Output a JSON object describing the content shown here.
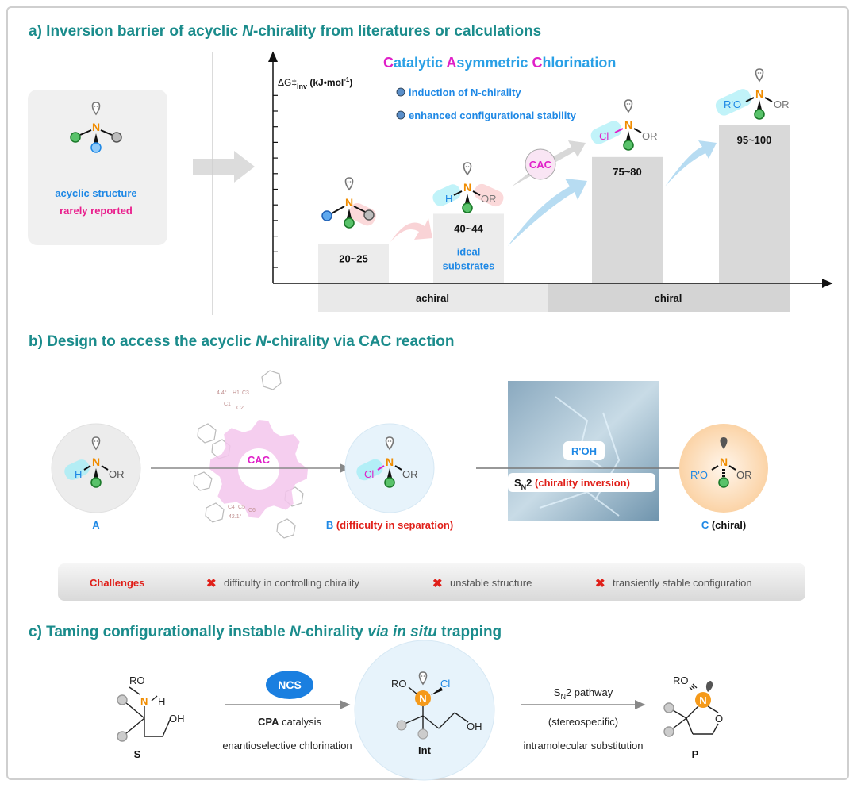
{
  "sections": {
    "a": {
      "prefix": "a) Inversion barrier of acyclic ",
      "italic": "N",
      "suffix": "-chirality from literatures or calculations"
    },
    "b": {
      "prefix": "b) Design to access the acyclic ",
      "italic": "N",
      "suffix": "-chirality via CAC reaction"
    },
    "c": {
      "prefix": "c) Taming configurationally instable ",
      "italic": "N",
      "mid": "-chirality ",
      "italic2": "via in situ",
      "suffix": " trapping"
    }
  },
  "left_card": {
    "line1": "acyclic structure",
    "line2": "rarely reported"
  },
  "chart": {
    "ylabel": "ΔG‡inv (kJ•mol-1)",
    "title": {
      "c1": "C",
      "t1": "atalytic ",
      "c2": "A",
      "t2": "symmetric ",
      "c3": "C",
      "t3": "hlorination"
    },
    "bullets": [
      "induction of N-chirality",
      "enhanced configurational stability"
    ],
    "bars": [
      {
        "label": "20~25",
        "low": 20,
        "high": 25
      },
      {
        "label": "40~44",
        "low": 40,
        "high": 44,
        "note1": "ideal",
        "note2": "substrates"
      },
      {
        "label": "75~80",
        "low": 75,
        "high": 80
      },
      {
        "label": "95~100",
        "low": 95,
        "high": 100
      }
    ],
    "groups": [
      "achiral",
      "chiral"
    ],
    "cac": "CAC",
    "colors": {
      "blue": "#1e88e5",
      "magenta": "#e020c8",
      "teal": "#1b8c8c"
    }
  },
  "molecules": {
    "H": "H",
    "OR": "OR",
    "Cl": "Cl",
    "RO_prime": "R'O",
    "N": "N",
    "RO": "RO",
    "OH": "OH",
    "O": "O"
  },
  "design": {
    "A": "A",
    "B": "B",
    "B_note": "(difficulty in separation)",
    "C": "C",
    "C_note": "(chiral)",
    "cac": "CAC",
    "reagent": "R'OH",
    "sn2_s": "S",
    "sn2_sub": "N",
    "sn2_2": "2",
    "sn2_note": "(chirality inversion)",
    "xray_labels": [
      "4.4°",
      "H1",
      "C3",
      "C1",
      "C2",
      "C4",
      "C5",
      "C6",
      "42.1°"
    ]
  },
  "challenges": {
    "label": "Challenges",
    "items": [
      "difficulty in controlling chirality",
      "unstable structure",
      "transiently stable configuration"
    ]
  },
  "trapping": {
    "S": "S",
    "Int": "Int",
    "P": "P",
    "ncs": "NCS",
    "cpa_bold": "CPA",
    "cpa_rest": " catalysis",
    "step1": "enantioselective chlorination",
    "sn2_s": "S",
    "sn2_sub": "N",
    "sn2_rest": "2 pathway",
    "stereo": "(stereospecific)",
    "step2": "intramolecular substitution"
  }
}
